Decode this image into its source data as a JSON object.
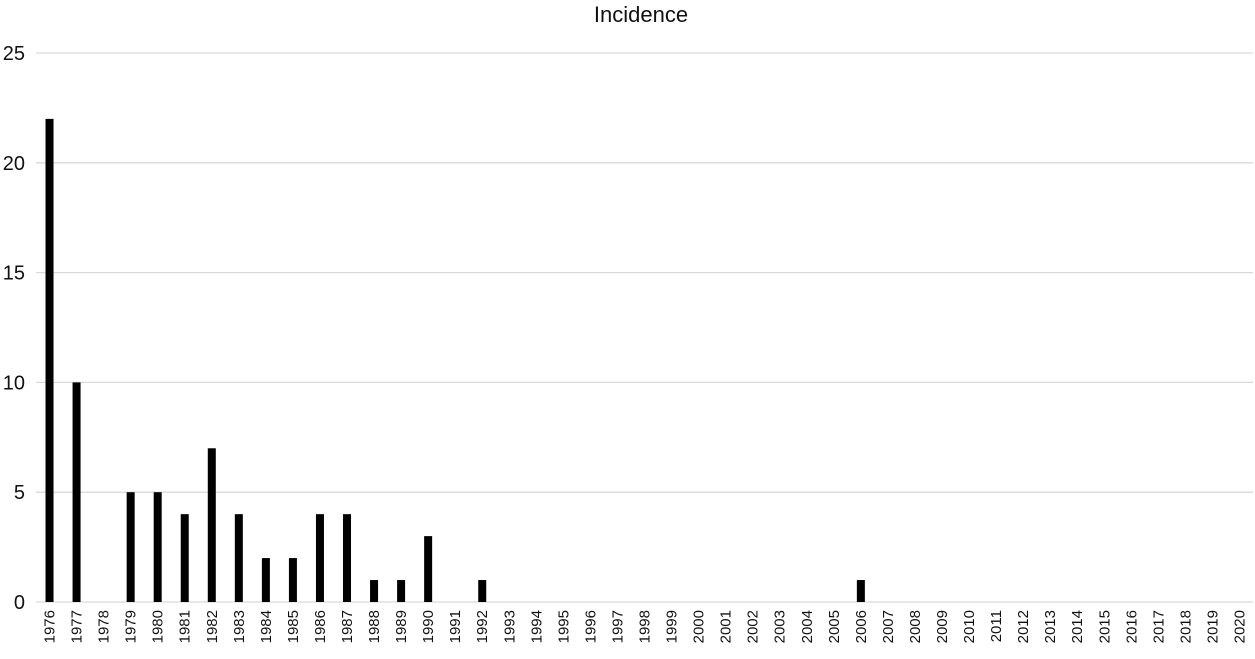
{
  "chart_data": {
    "type": "bar",
    "title": "Incidence",
    "xlabel": "",
    "ylabel": "",
    "ylim": [
      0,
      25
    ],
    "yticks": [
      0,
      5,
      10,
      15,
      20,
      25
    ],
    "grid": true,
    "legend": "none",
    "bar_color": "#000000",
    "grid_color": "#d9d9d9",
    "categories": [
      "1976",
      "1977",
      "1978",
      "1979",
      "1980",
      "1981",
      "1982",
      "1983",
      "1984",
      "1985",
      "1986",
      "1987",
      "1988",
      "1989",
      "1990",
      "1991",
      "1992",
      "1993",
      "1994",
      "1995",
      "1996",
      "1997",
      "1998",
      "1999",
      "2000",
      "2001",
      "2002",
      "2003",
      "2004",
      "2005",
      "2006",
      "2007",
      "2008",
      "2009",
      "2010",
      "2011",
      "2012",
      "2013",
      "2014",
      "2015",
      "2016",
      "2017",
      "2018",
      "2019",
      "2020"
    ],
    "values": [
      22,
      10,
      0,
      5,
      5,
      4,
      7,
      4,
      2,
      2,
      4,
      4,
      1,
      1,
      3,
      0,
      1,
      0,
      0,
      0,
      0,
      0,
      0,
      0,
      0,
      0,
      0,
      0,
      0,
      0,
      1,
      0,
      0,
      0,
      0,
      0,
      0,
      0,
      0,
      0,
      0,
      0,
      0,
      0,
      0
    ]
  }
}
